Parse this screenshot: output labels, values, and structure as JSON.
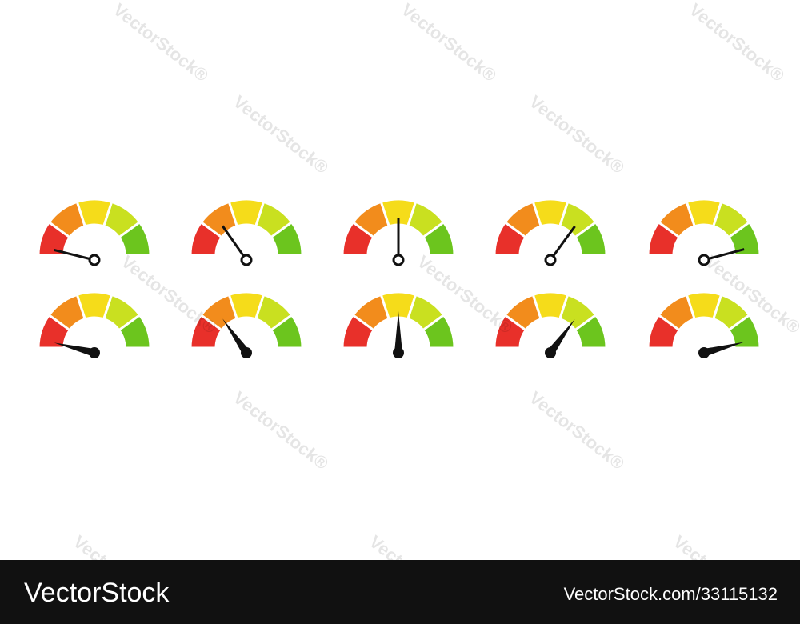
{
  "watermark": "VectorStock®",
  "footer": {
    "brand": "VectorStock",
    "id": "VectorStock.com/33115132"
  }
}
